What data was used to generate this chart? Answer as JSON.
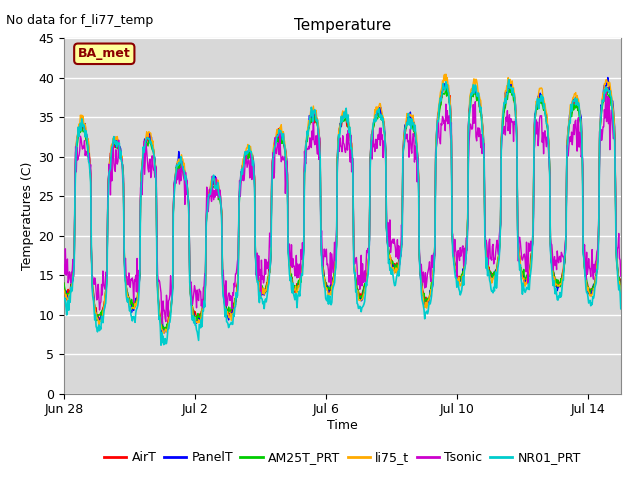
{
  "title": "Temperature",
  "xlabel": "Time",
  "ylabel": "Temperatures (C)",
  "annotation": "No data for f_li77_temp",
  "legend_label": "BA_met",
  "ylim": [
    0,
    45
  ],
  "yticks": [
    0,
    5,
    10,
    15,
    20,
    25,
    30,
    35,
    40,
    45
  ],
  "series": [
    "AirT",
    "PanelT",
    "AM25T_PRT",
    "li75_t",
    "Tsonic",
    "NR01_PRT"
  ],
  "colors": [
    "#ff0000",
    "#0000ff",
    "#00cc00",
    "#ffaa00",
    "#cc00cc",
    "#00cccc"
  ],
  "x_tick_positions": [
    0,
    4,
    8,
    12,
    16
  ],
  "x_tick_labels": [
    "Jun 28",
    "Jul 2",
    "Jul 6",
    "Jul 10",
    "Jul 14"
  ],
  "fig_bg": "#ffffff",
  "plot_bg": "#d8d8d8",
  "grid_color": "#ffffff",
  "total_days": 17,
  "hours_per_day": 48,
  "day_peaks": [
    37.0,
    31.5,
    32.0,
    32.5,
    26.5,
    26.5,
    33.0,
    32.5,
    37.0,
    33.5,
    37.0,
    33.0,
    42.5,
    35.0,
    41.0,
    34.5,
    38.5
  ],
  "day_mins": [
    13.0,
    9.5,
    11.5,
    8.0,
    9.5,
    10.0,
    13.0,
    13.5,
    13.5,
    12.0,
    16.5,
    11.5,
    14.5,
    15.0,
    14.5,
    14.0,
    13.0
  ],
  "peak_hour": 14,
  "sharpness": 3.5,
  "ba_met_color": "#8B0000",
  "ba_met_bg": "#ffff99",
  "annotation_fontsize": 9,
  "title_fontsize": 11,
  "axis_fontsize": 9,
  "legend_fontsize": 9
}
